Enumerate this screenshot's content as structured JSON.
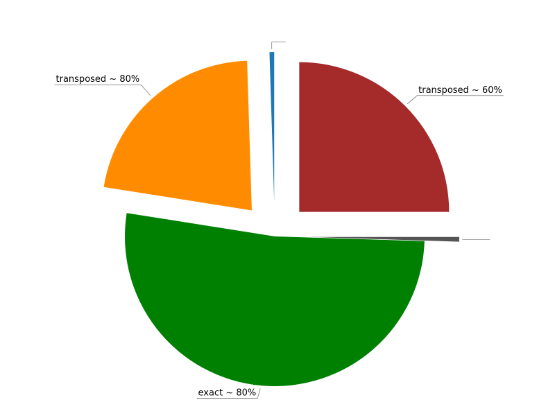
{
  "chart_data": {
    "type": "pie",
    "title": "",
    "start_angle_deg": 0,
    "direction": "counterclockwise",
    "slices": [
      {
        "label": "transposed ~ 60%",
        "value": 25.0,
        "color": "#a52a2a",
        "exploded": true
      },
      {
        "label": "",
        "value": 0.5,
        "color": "#1f77b4",
        "exploded": true
      },
      {
        "label": "transposed ~ 80%",
        "value": 22.0,
        "color": "#ff8c00",
        "exploded": true
      },
      {
        "label": "exact ~ 80%",
        "value": 52.0,
        "color": "#008000",
        "exploded": false
      },
      {
        "label": "",
        "value": 0.5,
        "color": "#555555",
        "exploded": true
      }
    ],
    "legend": "none",
    "grid": false
  }
}
